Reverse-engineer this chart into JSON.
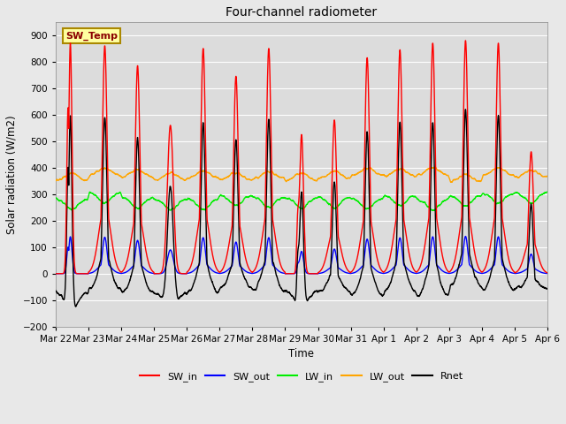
{
  "title": "Four-channel radiometer",
  "xlabel": "Time",
  "ylabel": "Solar radiation (W/m2)",
  "ylim": [
    -200,
    950
  ],
  "yticks": [
    -200,
    -100,
    0,
    100,
    200,
    300,
    400,
    500,
    600,
    700,
    800,
    900
  ],
  "x_tick_labels": [
    "Mar 22",
    "Mar 23",
    "Mar 24",
    "Mar 25",
    "Mar 26",
    "Mar 27",
    "Mar 28",
    "Mar 29",
    "Mar 30",
    "Mar 31",
    "Apr 1",
    "Apr 2",
    "Apr 3",
    "Apr 4",
    "Apr 5",
    "Apr 6"
  ],
  "n_days": 15,
  "background_color": "#e8e8e8",
  "plot_bg_color": "#dcdcdc",
  "sw_in_color": "#ff0000",
  "sw_out_color": "#0000ff",
  "lw_in_color": "#00ee00",
  "lw_out_color": "#ffa500",
  "rnet_color": "#000000",
  "annotation_text": "SW_Temp",
  "annotation_bg": "#ffffa0",
  "annotation_border": "#aa8800",
  "legend_entries": [
    "SW_in",
    "SW_out",
    "LW_in",
    "LW_out",
    "Rnet"
  ],
  "legend_colors": [
    "#ff0000",
    "#0000ff",
    "#00ee00",
    "#ffa500",
    "#000000"
  ],
  "pts_per_day": 288,
  "figwidth": 6.4,
  "figheight": 4.8,
  "dpi": 100
}
